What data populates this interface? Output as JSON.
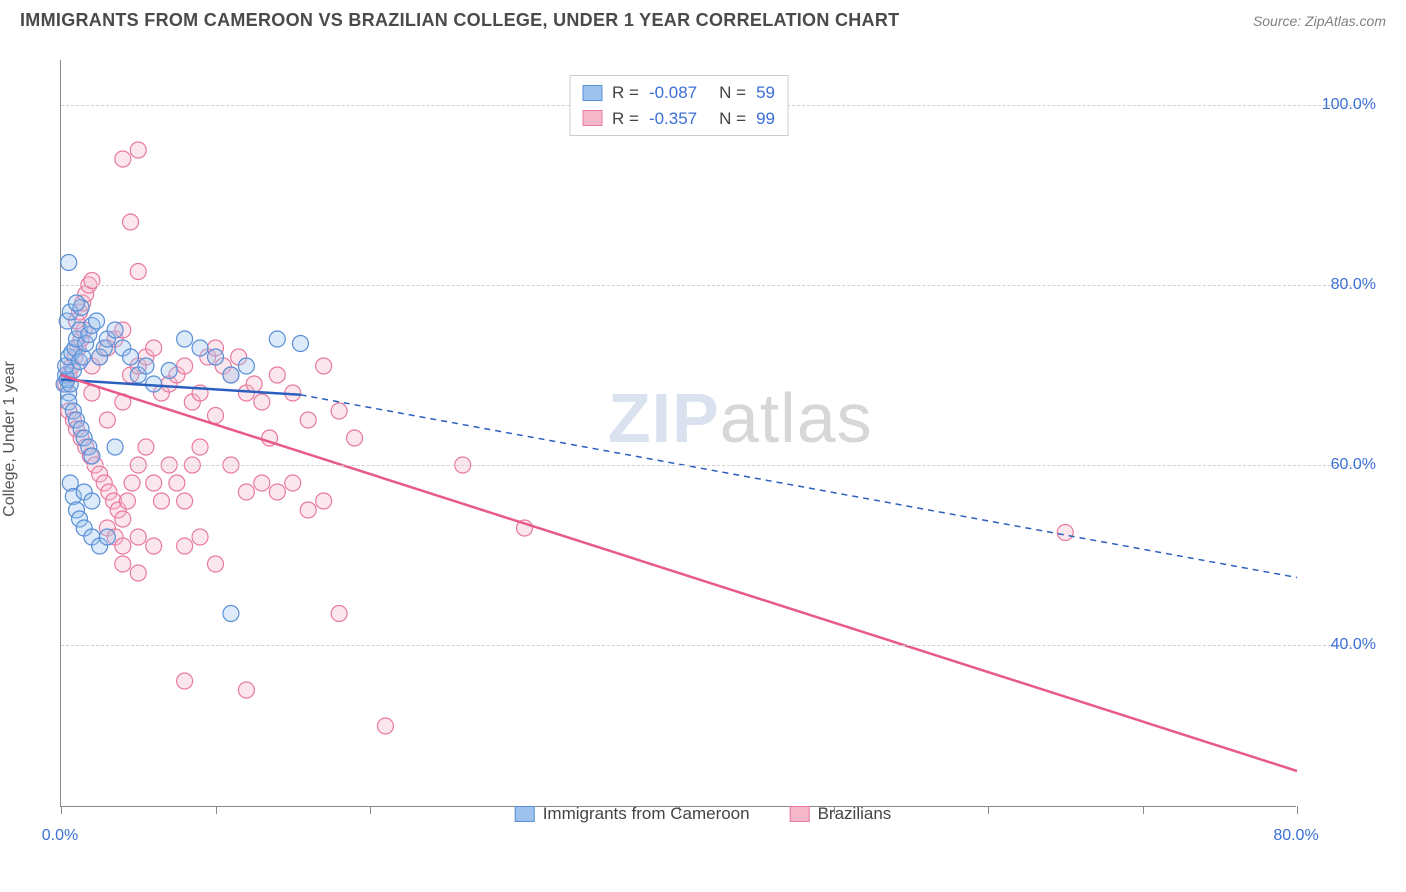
{
  "header": {
    "title": "IMMIGRANTS FROM CAMEROON VS BRAZILIAN COLLEGE, UNDER 1 YEAR CORRELATION CHART",
    "source_label": "Source: ZipAtlas.com"
  },
  "chart": {
    "type": "scatter",
    "y_axis_label": "College, Under 1 year",
    "xlim": [
      0,
      80
    ],
    "ylim": [
      22,
      105
    ],
    "x_ticks": [
      0,
      10,
      20,
      30,
      40,
      50,
      60,
      70,
      80
    ],
    "x_tick_labels": {
      "0": "0.0%",
      "80": "80.0%"
    },
    "y_ticks": [
      40,
      60,
      80,
      100
    ],
    "y_tick_labels": {
      "40": "40.0%",
      "60": "60.0%",
      "80": "80.0%",
      "100": "100.0%"
    },
    "grid_color": "#d0d0d0",
    "axis_color": "#888888",
    "axis_label_color": "#3b6fd6",
    "background": "#ffffff",
    "watermark": "ZIPatlas",
    "marker_radius": 8,
    "marker_stroke_width": 1.2,
    "marker_fill_opacity": 0.35,
    "trend_line_width": 2.5,
    "series": [
      {
        "id": "cameroon",
        "label": "Immigrants from Cameroon",
        "color_fill": "#9cc2ed",
        "color_stroke": "#5a8fd6",
        "color_line": "#2b5fc0",
        "R": "-0.087",
        "N": "59",
        "trend": {
          "x1": 0,
          "y1": 69.5,
          "x2": 15.5,
          "y2": 67.8,
          "dash_x1": 15.5,
          "dash_y1": 67.8,
          "dash_x2": 80,
          "dash_y2": 47.5
        },
        "points": [
          [
            0.2,
            69
          ],
          [
            0.3,
            70
          ],
          [
            0.5,
            68
          ],
          [
            0.4,
            69.5
          ],
          [
            0.6,
            69
          ],
          [
            0.8,
            70.5
          ],
          [
            0.3,
            71
          ],
          [
            0.5,
            72
          ],
          [
            0.7,
            72.5
          ],
          [
            0.9,
            73
          ],
          [
            1.0,
            74
          ],
          [
            1.2,
            75
          ],
          [
            0.4,
            76
          ],
          [
            0.6,
            77
          ],
          [
            1.3,
            77.5
          ],
          [
            1.0,
            78
          ],
          [
            0.5,
            82.5
          ],
          [
            1.2,
            71.5
          ],
          [
            1.4,
            72
          ],
          [
            1.6,
            73.5
          ],
          [
            1.8,
            74.5
          ],
          [
            2.0,
            75.5
          ],
          [
            2.3,
            76
          ],
          [
            2.5,
            72
          ],
          [
            2.8,
            73
          ],
          [
            3.0,
            74
          ],
          [
            3.5,
            75
          ],
          [
            4.0,
            73
          ],
          [
            4.5,
            72
          ],
          [
            5.0,
            70
          ],
          [
            5.5,
            71
          ],
          [
            6.0,
            69
          ],
          [
            7.0,
            70.5
          ],
          [
            8.0,
            74
          ],
          [
            9.0,
            73
          ],
          [
            10.0,
            72
          ],
          [
            11.0,
            70
          ],
          [
            12.0,
            71
          ],
          [
            14.0,
            74
          ],
          [
            15.5,
            73.5
          ],
          [
            0.5,
            67
          ],
          [
            0.8,
            66
          ],
          [
            1.0,
            65
          ],
          [
            1.3,
            64
          ],
          [
            1.5,
            63
          ],
          [
            1.8,
            62
          ],
          [
            2.0,
            61
          ],
          [
            0.6,
            58
          ],
          [
            0.8,
            56.5
          ],
          [
            1.0,
            55
          ],
          [
            1.2,
            54
          ],
          [
            1.5,
            53
          ],
          [
            2.0,
            52
          ],
          [
            2.5,
            51
          ],
          [
            3.0,
            52
          ],
          [
            1.5,
            57
          ],
          [
            2.0,
            56
          ],
          [
            11.0,
            43.5
          ],
          [
            3.5,
            62
          ]
        ]
      },
      {
        "id": "brazilians",
        "label": "Brazilians",
        "color_fill": "#f5b8ca",
        "color_stroke": "#e87aa0",
        "color_line": "#e85a8a",
        "R": "-0.357",
        "N": "99",
        "trend": {
          "x1": 0,
          "y1": 70,
          "x2": 80,
          "y2": 26
        },
        "points": [
          [
            0.3,
            69
          ],
          [
            0.5,
            70
          ],
          [
            0.7,
            71
          ],
          [
            0.9,
            72
          ],
          [
            1.1,
            73
          ],
          [
            1.3,
            74
          ],
          [
            1.5,
            75
          ],
          [
            1.0,
            76
          ],
          [
            1.2,
            77
          ],
          [
            1.4,
            78
          ],
          [
            1.6,
            79
          ],
          [
            1.8,
            80
          ],
          [
            2.0,
            80.5
          ],
          [
            5.0,
            81.5
          ],
          [
            4.0,
            94
          ],
          [
            5.0,
            95
          ],
          [
            4.5,
            87
          ],
          [
            2.0,
            71
          ],
          [
            2.5,
            72
          ],
          [
            3.0,
            73
          ],
          [
            3.5,
            74
          ],
          [
            4.0,
            75
          ],
          [
            4.5,
            70
          ],
          [
            5.0,
            71
          ],
          [
            5.5,
            72
          ],
          [
            6.0,
            73
          ],
          [
            6.5,
            68
          ],
          [
            7.0,
            69
          ],
          [
            7.5,
            70
          ],
          [
            8.0,
            71
          ],
          [
            8.5,
            67
          ],
          [
            9.0,
            68
          ],
          [
            9.5,
            72
          ],
          [
            10.0,
            73
          ],
          [
            10.5,
            71
          ],
          [
            11.0,
            70
          ],
          [
            11.5,
            72
          ],
          [
            12.0,
            68
          ],
          [
            12.5,
            69
          ],
          [
            13.0,
            67
          ],
          [
            13.5,
            63
          ],
          [
            14.0,
            70
          ],
          [
            15.0,
            68
          ],
          [
            16.0,
            65
          ],
          [
            17.0,
            71
          ],
          [
            18.0,
            66
          ],
          [
            19.0,
            63
          ],
          [
            0.5,
            66
          ],
          [
            0.8,
            65
          ],
          [
            1.0,
            64
          ],
          [
            1.3,
            63
          ],
          [
            1.6,
            62
          ],
          [
            1.9,
            61
          ],
          [
            2.2,
            60
          ],
          [
            2.5,
            59
          ],
          [
            2.8,
            58
          ],
          [
            3.1,
            57
          ],
          [
            3.4,
            56
          ],
          [
            3.7,
            55
          ],
          [
            4.0,
            54
          ],
          [
            4.3,
            56
          ],
          [
            4.6,
            58
          ],
          [
            5.0,
            60
          ],
          [
            5.5,
            62
          ],
          [
            6.0,
            58
          ],
          [
            6.5,
            56
          ],
          [
            7.0,
            60
          ],
          [
            7.5,
            58
          ],
          [
            8.0,
            56
          ],
          [
            8.5,
            60
          ],
          [
            9.0,
            62
          ],
          [
            10.0,
            65.5
          ],
          [
            11.0,
            60
          ],
          [
            12.0,
            57
          ],
          [
            13.0,
            58
          ],
          [
            14.0,
            57
          ],
          [
            15.0,
            58
          ],
          [
            16.0,
            55
          ],
          [
            17.0,
            56
          ],
          [
            3.0,
            53
          ],
          [
            3.5,
            52
          ],
          [
            4.0,
            51
          ],
          [
            5.0,
            52
          ],
          [
            6.0,
            51
          ],
          [
            8.0,
            51
          ],
          [
            9.0,
            52
          ],
          [
            10.0,
            49
          ],
          [
            4.0,
            49
          ],
          [
            5.0,
            48
          ],
          [
            18.0,
            43.5
          ],
          [
            26.0,
            60
          ],
          [
            30.0,
            53
          ],
          [
            8.0,
            36
          ],
          [
            12.0,
            35
          ],
          [
            21.0,
            31
          ],
          [
            65.0,
            52.5
          ],
          [
            2.0,
            68
          ],
          [
            3.0,
            65
          ],
          [
            4.0,
            67
          ]
        ]
      }
    ]
  },
  "legend": {
    "items": [
      {
        "series": "cameroon",
        "label": "Immigrants from Cameroon"
      },
      {
        "series": "brazilians",
        "label": "Brazilians"
      }
    ]
  }
}
